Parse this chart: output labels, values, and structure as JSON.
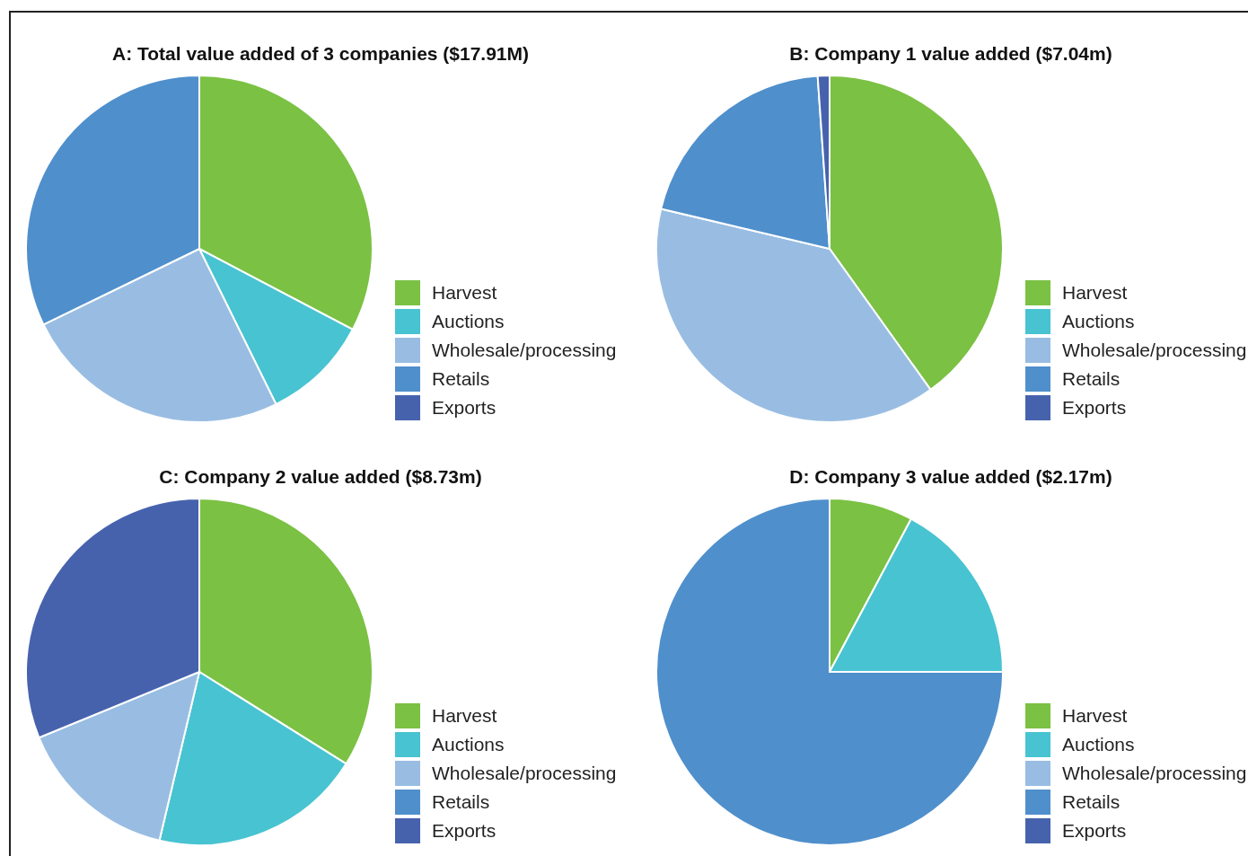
{
  "chart_data": [
    {
      "type": "pie",
      "title": "A: Total value added of 3 companies ($17.91M)",
      "categories": [
        "Harvest",
        "Auctions",
        "Wholesale/processing",
        "Retails",
        "Exports"
      ],
      "values": [
        32.7,
        10,
        25.1,
        32.2,
        0
      ],
      "colors": [
        "#7bc143",
        "#48c3d1",
        "#99bde2",
        "#4f8fcc",
        "#4762ad"
      ],
      "legend": "right"
    },
    {
      "type": "pie",
      "title": "B: Company 1 value added ($7.04m)",
      "categories": [
        "Harvest",
        "Auctions",
        "Wholesale/processing",
        "Retails",
        "Exports"
      ],
      "values": [
        40.1,
        0,
        38.6,
        20.2,
        1.1
      ],
      "colors": [
        "#7bc143",
        "#48c3d1",
        "#99bde2",
        "#4f8fcc",
        "#4762ad"
      ],
      "legend": "right"
    },
    {
      "type": "pie",
      "title": "C: Company 2 value added ($8.73m)",
      "categories": [
        "Harvest",
        "Auctions",
        "Wholesale/processing",
        "Retails",
        "Exports"
      ],
      "values": [
        33.9,
        19.8,
        15.1,
        0,
        31.2
      ],
      "colors": [
        "#7bc143",
        "#48c3d1",
        "#99bde2",
        "#4f8fcc",
        "#4762ad"
      ],
      "legend": "right"
    },
    {
      "type": "pie",
      "title": "D: Company 3 value added ($2.17m)",
      "categories": [
        "Harvest",
        "Auctions",
        "Wholesale/processing",
        "Retails",
        "Exports"
      ],
      "values": [
        7.8,
        17.2,
        0,
        75,
        0
      ],
      "colors": [
        "#7bc143",
        "#48c3d1",
        "#99bde2",
        "#4f8fcc",
        "#4762ad"
      ],
      "legend": "right"
    }
  ]
}
